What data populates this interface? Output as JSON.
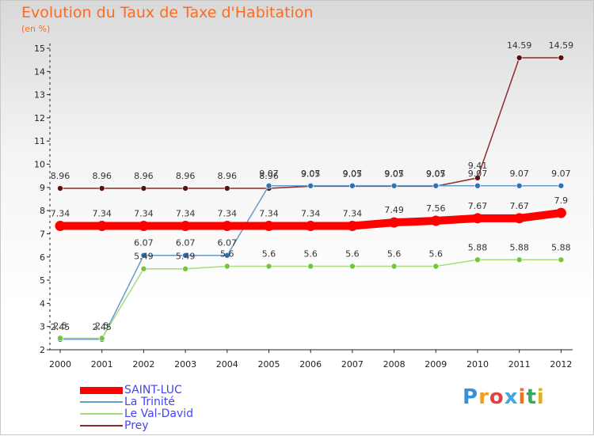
{
  "header": {
    "title": "Evolution du Taux de Taxe d'Habitation",
    "unit": "(en %)"
  },
  "chart_data": {
    "type": "line",
    "title": "Evolution du Taux de Taxe d'Habitation",
    "ylabel": "(en %)",
    "x": [
      "2000",
      "2001",
      "2002",
      "2003",
      "2004",
      "2005",
      "2006",
      "2007",
      "2008",
      "2009",
      "2010",
      "2011",
      "2012"
    ],
    "yticks": [
      2,
      3,
      4,
      5,
      6,
      7,
      8,
      9,
      10,
      11,
      12,
      13,
      14,
      15
    ],
    "ylim": [
      2,
      15
    ],
    "grid": false,
    "series": [
      {
        "name": "Prey",
        "color": "#8b2a2a",
        "marker": "#5a1010",
        "values": [
          8.96,
          8.96,
          8.96,
          8.96,
          8.96,
          8.96,
          9.05,
          9.05,
          9.05,
          9.05,
          9.41,
          14.59,
          14.59
        ],
        "labels": [
          "8.96",
          "8.96",
          "8.96",
          "8.96",
          "8.96",
          "8.96",
          "9.05",
          "9.05",
          "9.05",
          "9.05",
          "9.41",
          "14.59",
          "14.59"
        ]
      },
      {
        "name": "La Trinité",
        "color": "#6699cc",
        "marker": "#2e72b8",
        "values": [
          2.45,
          2.45,
          6.07,
          6.07,
          6.07,
          9.07,
          9.07,
          9.07,
          9.07,
          9.07,
          9.07,
          9.07,
          9.07
        ],
        "labels": [
          "2.45",
          "2.45",
          "6.07",
          "6.07",
          "6.07",
          "9.07",
          "9.07",
          "9.07",
          "9.07",
          "9.07",
          "9.07",
          "9.07",
          "9.07"
        ]
      },
      {
        "name": "Le Val-David",
        "color": "#a6dc7c",
        "marker": "#73c63a",
        "values": [
          2.5,
          2.5,
          5.49,
          5.49,
          5.6,
          5.6,
          5.6,
          5.6,
          5.6,
          5.6,
          5.88,
          5.88,
          5.88
        ],
        "labels": [
          "2.5",
          "2.5",
          "5.49",
          "5.49",
          "5.6",
          "5.6",
          "5.6",
          "5.6",
          "5.6",
          "5.6",
          "5.88",
          "5.88",
          "5.88"
        ]
      },
      {
        "name": "SAINT-LUC",
        "color": "#ff0000",
        "marker": "#ff0000",
        "values": [
          7.34,
          7.34,
          7.34,
          7.34,
          7.34,
          7.34,
          7.34,
          7.34,
          7.49,
          7.56,
          7.67,
          7.67,
          7.9
        ],
        "labels": [
          "7.34",
          "7.34",
          "7.34",
          "7.34",
          "7.34",
          "7.34",
          "7.34",
          "7.34",
          "7.49",
          "7.56",
          "7.67",
          "7.67",
          "7.9"
        ]
      }
    ],
    "legend_order": [
      "SAINT-LUC",
      "La Trinité",
      "Le Val-David",
      "Prey"
    ],
    "legend_position": "bottom-left"
  },
  "logo": {
    "text": "Proxiti",
    "letters": [
      "P",
      "r",
      "o",
      "x",
      "i",
      "t",
      "i"
    ],
    "colors": [
      "#3a8fd8",
      "#f0a020",
      "#e04040",
      "#40a8e0",
      "#f07020",
      "#3aa860",
      "#e0b020"
    ]
  }
}
